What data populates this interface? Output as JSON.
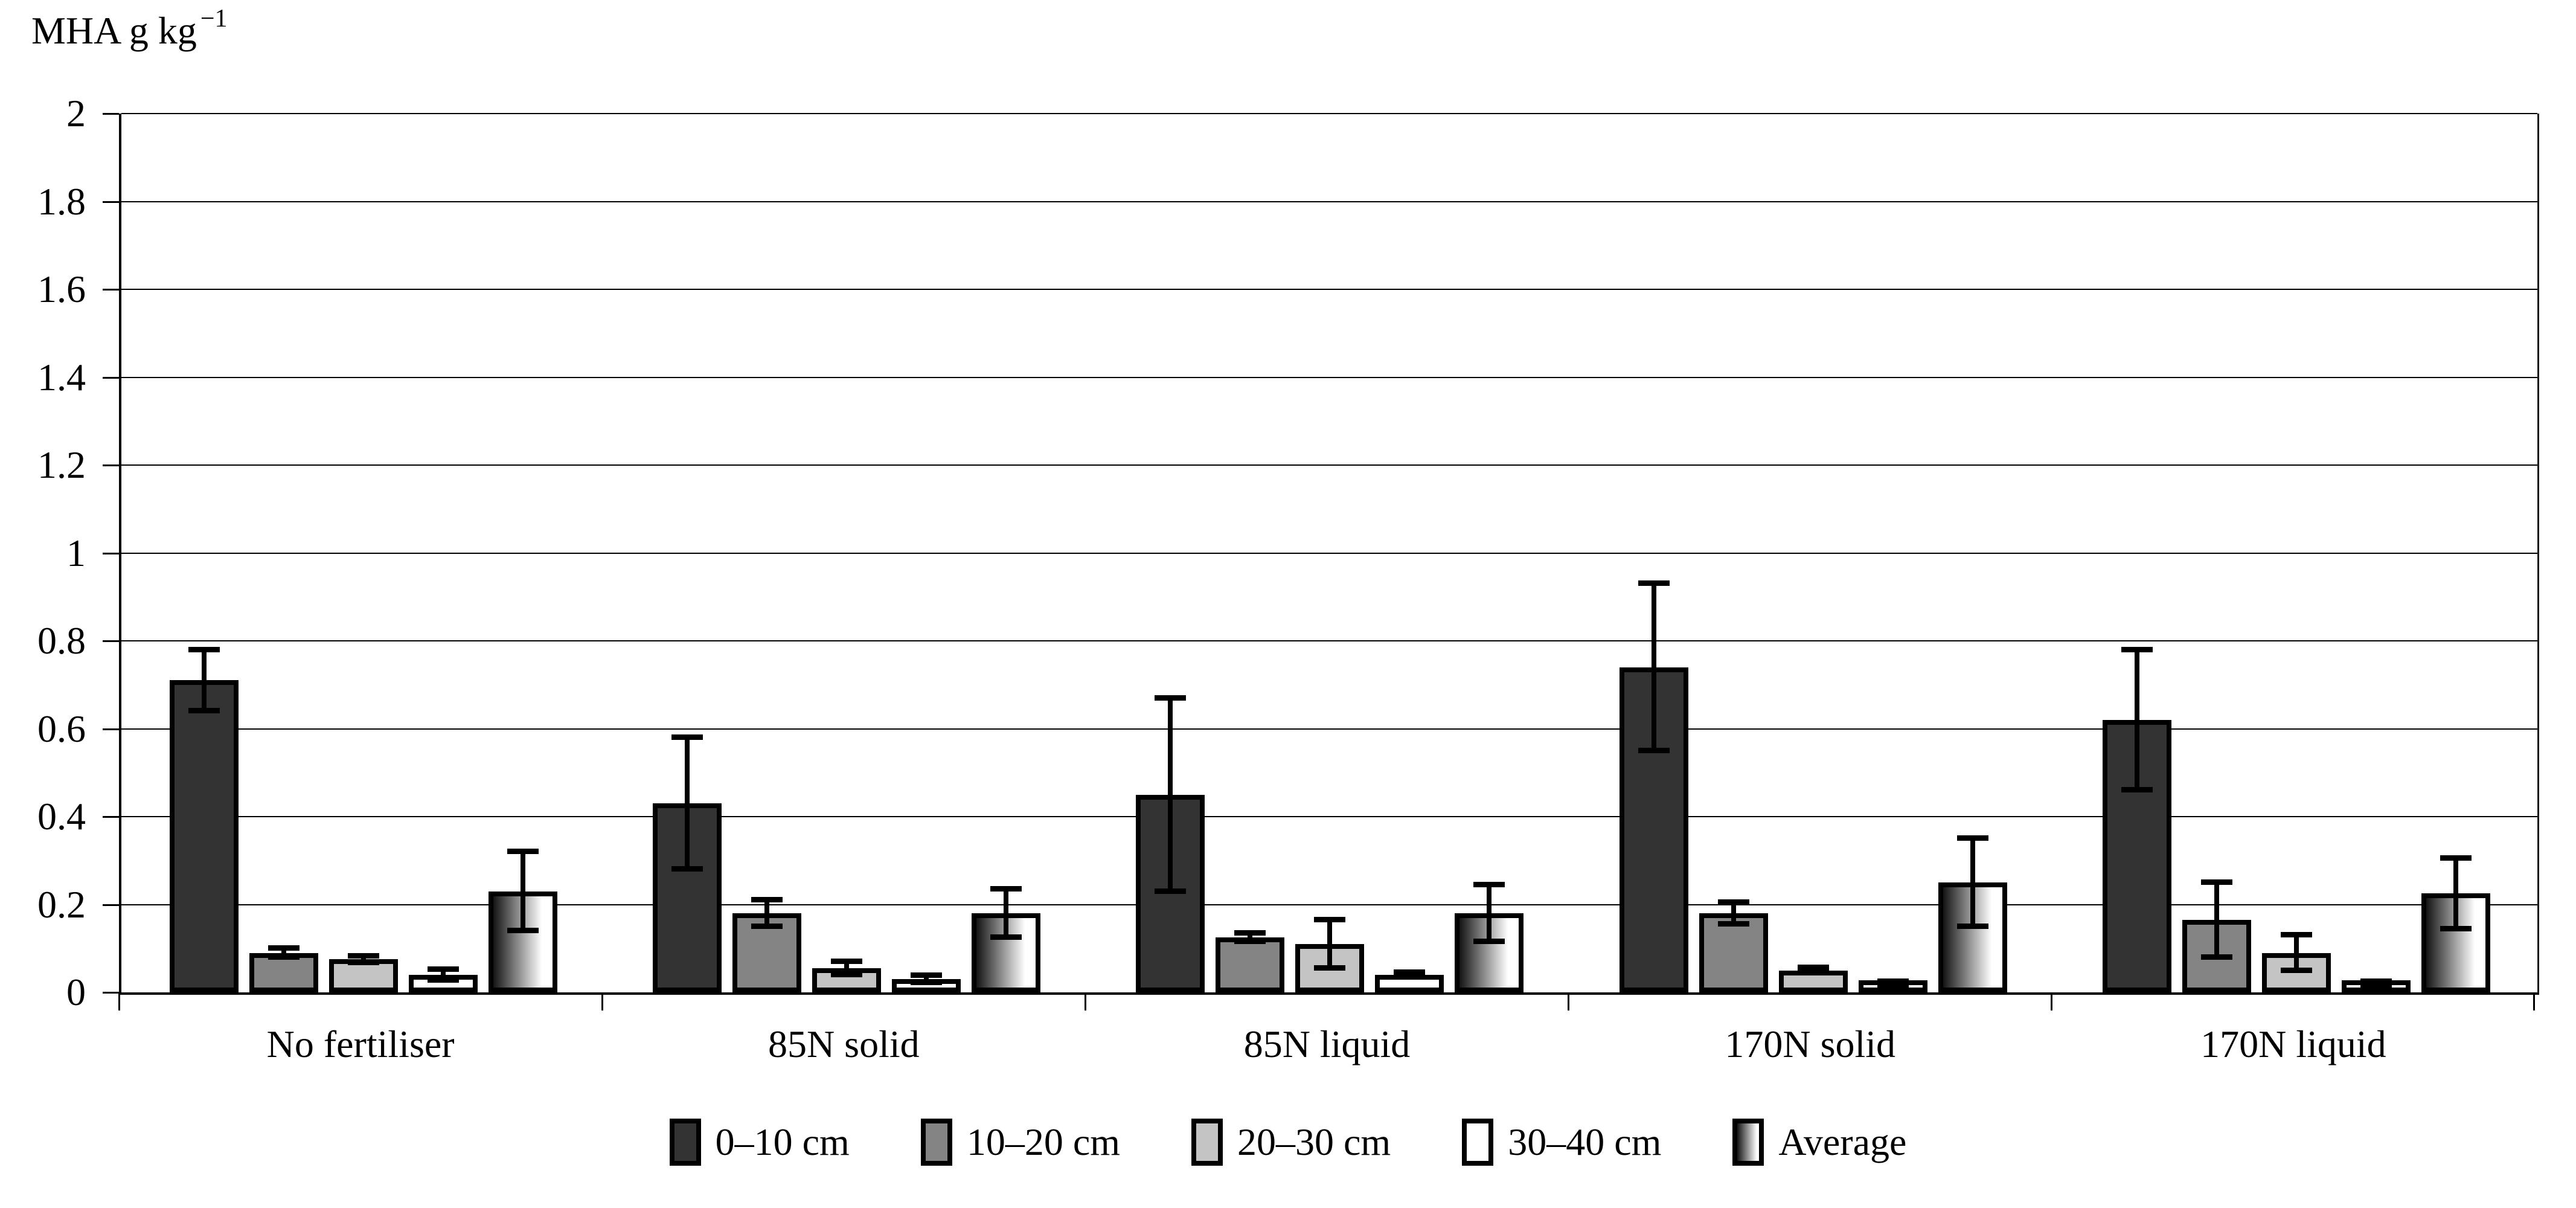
{
  "title": {
    "text": "MHA g kg",
    "sup": "−1"
  },
  "y_axis": {
    "tick_labels": [
      "2",
      "1.8",
      "1.6",
      "1.4",
      "1.2",
      "1",
      "0.8",
      "0.6",
      "0.4",
      "0.2",
      "0"
    ],
    "min": 0,
    "max": 2,
    "tick_step": 0.2
  },
  "chart_data": {
    "type": "bar",
    "title": "MHA g kg⁻¹",
    "ylabel": "MHA g kg⁻¹",
    "xlabel": "",
    "ylim": [
      0,
      2
    ],
    "ytick_step": 0.2,
    "grid": true,
    "legend_position": "bottom",
    "error_bars": true,
    "categories": [
      "No fertiliser",
      "85N solid",
      "85N liquid",
      "170N solid",
      "170N liquid"
    ],
    "series": [
      {
        "name": "0–10 cm",
        "color": "#333333",
        "values": [
          0.71,
          0.43,
          0.45,
          0.74,
          0.62
        ],
        "errors": [
          0.07,
          0.15,
          0.22,
          0.19,
          0.16
        ]
      },
      {
        "name": "10–20 cm",
        "color": "#848484",
        "values": [
          0.09,
          0.18,
          0.125,
          0.18,
          0.165
        ],
        "errors": [
          0.01,
          0.03,
          0.01,
          0.025,
          0.085
        ]
      },
      {
        "name": "20–30 cm",
        "color": "#c4c4c4",
        "values": [
          0.075,
          0.055,
          0.11,
          0.05,
          0.09
        ],
        "errors": [
          0.008,
          0.015,
          0.055,
          0.006,
          0.04
        ]
      },
      {
        "name": "30–40 cm",
        "color": "#ffffff",
        "values": [
          0.04,
          0.03,
          0.04,
          0.02,
          0.02
        ],
        "errors": [
          0.012,
          0.008,
          0.006,
          0.005,
          0.005
        ]
      },
      {
        "name": "Average",
        "color": "gradient",
        "gradient": [
          "#141414",
          "#ffffff"
        ],
        "values": [
          0.23,
          0.18,
          0.18,
          0.25,
          0.225
        ],
        "errors": [
          0.09,
          0.055,
          0.065,
          0.1,
          0.08
        ]
      }
    ]
  }
}
